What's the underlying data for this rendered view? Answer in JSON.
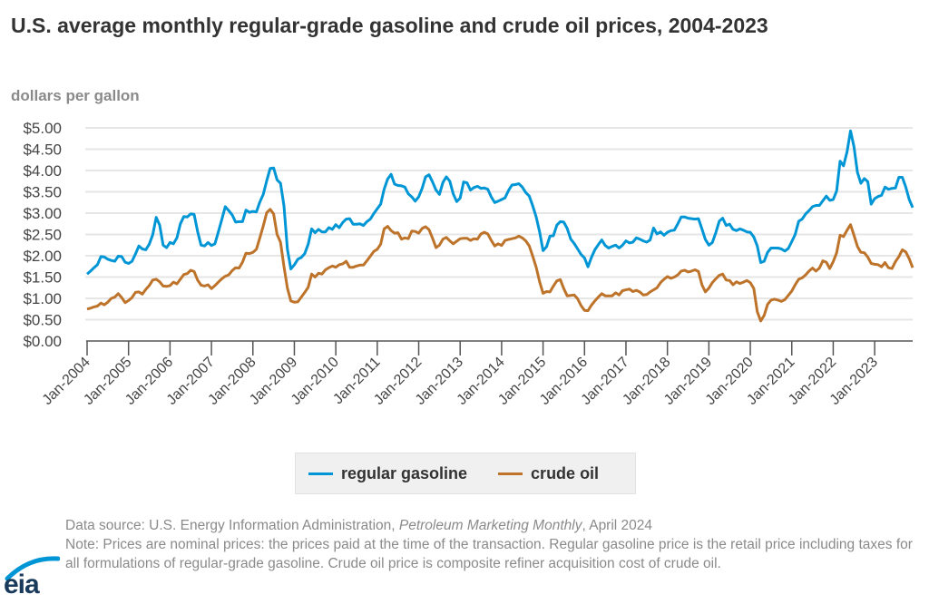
{
  "header": {
    "title": "U.S. average monthly regular-grade gasoline and crude oil prices, 2004-2023",
    "units": "dollars per gallon"
  },
  "legend": {
    "items": [
      {
        "label": "regular gasoline",
        "color": "#0096d6"
      },
      {
        "label": "crude oil",
        "color": "#bd732a"
      }
    ]
  },
  "footer": {
    "source_prefix": "Data source: U.S. Energy Information Administration, ",
    "source_publication": "Petroleum Marketing Monthly",
    "source_suffix": ", April 2024",
    "note": "Note: Prices are nominal prices: the prices paid at the time of the transaction. Regular gasoline price is the retail price including taxes for all formulations of regular-grade gasoline. Crude oil price is composite refiner acquisition cost of crude oil."
  },
  "logo": {
    "text": "eia"
  },
  "chart_data": {
    "type": "line",
    "title": "U.S. average monthly regular-grade gasoline and crude oil prices, 2004-2023",
    "xlabel": "",
    "ylabel": "dollars per gallon",
    "ylim": [
      0,
      5
    ],
    "grid": true,
    "legend_position": "bottom-center",
    "yticks": [
      0,
      0.5,
      1,
      1.5,
      2,
      2.5,
      3,
      3.5,
      4,
      4.5,
      5
    ],
    "ytick_labels": [
      "$0.00",
      "$0.50",
      "$1.00",
      "$1.50",
      "$2.00",
      "$2.50",
      "$3.00",
      "$3.50",
      "$4.00",
      "$4.50",
      "$5.00"
    ],
    "xtick_labels": [
      "Jan-2004",
      "Jan-2005",
      "Jan-2006",
      "Jan-2007",
      "Jan-2008",
      "Jan-2009",
      "Jan-2010",
      "Jan-2011",
      "Jan-2012",
      "Jan-2013",
      "Jan-2014",
      "Jan-2015",
      "Jan-2016",
      "Jan-2017",
      "Jan-2018",
      "Jan-2019",
      "Jan-2020",
      "Jan-2021",
      "Jan-2022",
      "Jan-2023"
    ],
    "x_start": "Jan-2004",
    "x_end": "Dec-2023",
    "frequency": "monthly",
    "series": [
      {
        "name": "regular gasoline",
        "color": "#0096d6",
        "values": [
          1.57,
          1.64,
          1.72,
          1.79,
          1.98,
          1.97,
          1.92,
          1.89,
          1.87,
          1.99,
          1.98,
          1.85,
          1.82,
          1.87,
          2.04,
          2.23,
          2.16,
          2.14,
          2.27,
          2.49,
          2.9,
          2.72,
          2.25,
          2.19,
          2.31,
          2.28,
          2.42,
          2.75,
          2.92,
          2.91,
          2.98,
          2.97,
          2.57,
          2.25,
          2.23,
          2.31,
          2.24,
          2.28,
          2.56,
          2.85,
          3.15,
          3.06,
          2.96,
          2.79,
          2.8,
          2.8,
          3.07,
          3.02,
          3.04,
          3.03,
          3.26,
          3.44,
          3.76,
          4.05,
          4.06,
          3.78,
          3.7,
          3.17,
          2.15,
          1.69,
          1.79,
          1.92,
          1.96,
          2.05,
          2.27,
          2.63,
          2.54,
          2.62,
          2.56,
          2.56,
          2.66,
          2.62,
          2.73,
          2.66,
          2.78,
          2.86,
          2.87,
          2.74,
          2.74,
          2.75,
          2.71,
          2.8,
          2.86,
          2.99,
          3.1,
          3.21,
          3.56,
          3.8,
          3.91,
          3.68,
          3.65,
          3.64,
          3.61,
          3.45,
          3.38,
          3.28,
          3.38,
          3.58,
          3.85,
          3.9,
          3.73,
          3.54,
          3.44,
          3.72,
          3.85,
          3.75,
          3.45,
          3.27,
          3.35,
          3.73,
          3.71,
          3.54,
          3.6,
          3.63,
          3.58,
          3.59,
          3.56,
          3.38,
          3.25,
          3.28,
          3.32,
          3.36,
          3.53,
          3.66,
          3.67,
          3.69,
          3.61,
          3.48,
          3.4,
          3.17,
          2.91,
          2.56,
          2.12,
          2.21,
          2.46,
          2.47,
          2.72,
          2.8,
          2.79,
          2.64,
          2.39,
          2.29,
          2.16,
          2.03,
          1.95,
          1.74,
          1.96,
          2.14,
          2.26,
          2.37,
          2.24,
          2.18,
          2.22,
          2.25,
          2.18,
          2.25,
          2.35,
          2.3,
          2.32,
          2.42,
          2.39,
          2.35,
          2.32,
          2.37,
          2.65,
          2.51,
          2.56,
          2.48,
          2.55,
          2.59,
          2.6,
          2.75,
          2.91,
          2.91,
          2.88,
          2.87,
          2.86,
          2.87,
          2.63,
          2.38,
          2.25,
          2.31,
          2.54,
          2.81,
          2.88,
          2.71,
          2.74,
          2.62,
          2.59,
          2.63,
          2.6,
          2.56,
          2.55,
          2.44,
          2.23,
          1.84,
          1.87,
          2.08,
          2.18,
          2.18,
          2.18,
          2.16,
          2.11,
          2.17,
          2.33,
          2.5,
          2.81,
          2.86,
          2.98,
          3.06,
          3.15,
          3.18,
          3.18,
          3.29,
          3.4,
          3.3,
          3.32,
          3.52,
          4.22,
          4.11,
          4.44,
          4.93,
          4.56,
          3.96,
          3.7,
          3.81,
          3.74,
          3.21,
          3.34,
          3.39,
          3.42,
          3.61,
          3.56,
          3.58,
          3.59,
          3.84,
          3.84,
          3.61,
          3.32,
          3.13
        ]
      },
      {
        "name": "crude oil",
        "color": "#bd732a",
        "values": [
          0.75,
          0.77,
          0.8,
          0.82,
          0.89,
          0.85,
          0.91,
          1.0,
          1.03,
          1.11,
          1.02,
          0.9,
          0.95,
          1.02,
          1.14,
          1.15,
          1.1,
          1.21,
          1.3,
          1.43,
          1.45,
          1.39,
          1.29,
          1.28,
          1.3,
          1.38,
          1.34,
          1.45,
          1.56,
          1.58,
          1.66,
          1.63,
          1.43,
          1.31,
          1.29,
          1.32,
          1.23,
          1.3,
          1.38,
          1.46,
          1.52,
          1.55,
          1.65,
          1.72,
          1.71,
          1.85,
          2.06,
          2.05,
          2.08,
          2.15,
          2.42,
          2.7,
          3.01,
          3.09,
          2.98,
          2.5,
          2.32,
          1.75,
          1.24,
          0.94,
          0.91,
          0.92,
          1.03,
          1.14,
          1.26,
          1.57,
          1.5,
          1.59,
          1.57,
          1.67,
          1.72,
          1.76,
          1.73,
          1.79,
          1.81,
          1.87,
          1.73,
          1.73,
          1.76,
          1.78,
          1.78,
          1.88,
          1.99,
          2.1,
          2.15,
          2.27,
          2.63,
          2.69,
          2.59,
          2.53,
          2.54,
          2.39,
          2.42,
          2.4,
          2.58,
          2.57,
          2.53,
          2.64,
          2.68,
          2.61,
          2.41,
          2.19,
          2.25,
          2.39,
          2.43,
          2.35,
          2.28,
          2.34,
          2.4,
          2.41,
          2.41,
          2.36,
          2.4,
          2.39,
          2.51,
          2.55,
          2.51,
          2.36,
          2.23,
          2.28,
          2.24,
          2.36,
          2.38,
          2.4,
          2.42,
          2.46,
          2.42,
          2.35,
          2.23,
          1.99,
          1.73,
          1.39,
          1.12,
          1.16,
          1.15,
          1.29,
          1.41,
          1.44,
          1.23,
          1.06,
          1.07,
          1.08,
          0.99,
          0.83,
          0.72,
          0.71,
          0.84,
          0.94,
          1.03,
          1.11,
          1.06,
          1.06,
          1.06,
          1.13,
          1.08,
          1.18,
          1.2,
          1.22,
          1.16,
          1.19,
          1.15,
          1.08,
          1.09,
          1.15,
          1.2,
          1.25,
          1.37,
          1.45,
          1.51,
          1.47,
          1.5,
          1.55,
          1.64,
          1.66,
          1.62,
          1.64,
          1.67,
          1.63,
          1.32,
          1.15,
          1.24,
          1.37,
          1.46,
          1.54,
          1.57,
          1.43,
          1.42,
          1.32,
          1.39,
          1.35,
          1.38,
          1.42,
          1.37,
          1.23,
          0.69,
          0.47,
          0.6,
          0.86,
          0.96,
          0.98,
          0.96,
          0.93,
          0.97,
          1.07,
          1.17,
          1.32,
          1.45,
          1.48,
          1.55,
          1.64,
          1.71,
          1.64,
          1.71,
          1.88,
          1.85,
          1.7,
          1.86,
          2.07,
          2.48,
          2.45,
          2.6,
          2.73,
          2.48,
          2.22,
          2.08,
          2.07,
          1.97,
          1.82,
          1.8,
          1.79,
          1.74,
          1.84,
          1.72,
          1.7,
          1.86,
          1.98,
          2.14,
          2.09,
          1.93,
          1.72
        ]
      }
    ]
  }
}
